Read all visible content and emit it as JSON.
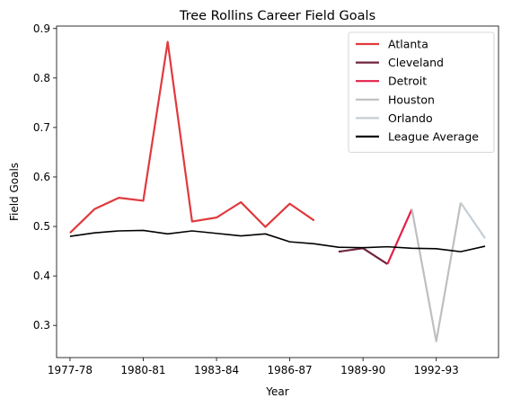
{
  "chart_data": {
    "type": "line",
    "title": "Tree Rollins Career Field Goals",
    "xlabel": "Year",
    "ylabel": "Field Goals",
    "x_ticks": [
      "1977-78",
      "1980-81",
      "1983-84",
      "1986-87",
      "1989-90",
      "1992-93"
    ],
    "y_ticks": [
      "0.3",
      "0.4",
      "0.5",
      "0.6",
      "0.7",
      "0.8",
      "0.9"
    ],
    "ylim": [
      0.235,
      0.905
    ],
    "grid": false,
    "legend_position": "top-right",
    "seasons": [
      "1977-78",
      "1978-79",
      "1979-80",
      "1980-81",
      "1981-82",
      "1982-83",
      "1983-84",
      "1984-85",
      "1985-86",
      "1986-87",
      "1987-88",
      "1988-89",
      "1989-90",
      "1990-91",
      "1991-92",
      "1992-93",
      "1993-94",
      "1994-95"
    ],
    "series": [
      {
        "name": "Atlanta",
        "color": "#e03a3e",
        "x": [
          "1977-78",
          "1978-79",
          "1979-80",
          "1980-81",
          "1981-82",
          "1982-83",
          "1983-84",
          "1984-85",
          "1985-86",
          "1986-87",
          "1987-88"
        ],
        "values": [
          0.487,
          0.535,
          0.558,
          0.552,
          0.873,
          0.51,
          0.518,
          0.549,
          0.499,
          0.546,
          0.512
        ]
      },
      {
        "name": "Cleveland",
        "color": "#6f263d",
        "x": [
          "1988-89",
          "1989-90",
          "1990-91"
        ],
        "values": [
          0.449,
          0.456,
          0.424
        ]
      },
      {
        "name": "Detroit",
        "color": "#e41e4a",
        "x": [
          "1990-91",
          "1991-92"
        ],
        "values": [
          0.424,
          0.535
        ]
      },
      {
        "name": "Houston",
        "color": "#bfbfbf",
        "x": [
          "1991-92",
          "1992-93",
          "1993-94"
        ],
        "values": [
          0.535,
          0.268,
          0.548
        ]
      },
      {
        "name": "Orlando",
        "color": "#c4ced4",
        "x": [
          "1993-94",
          "1994-95"
        ],
        "values": [
          0.548,
          0.476
        ]
      },
      {
        "name": "League Average",
        "color": "#000000",
        "x": [
          "1977-78",
          "1978-79",
          "1979-80",
          "1980-81",
          "1981-82",
          "1982-83",
          "1983-84",
          "1984-85",
          "1985-86",
          "1986-87",
          "1987-88",
          "1988-89",
          "1989-90",
          "1990-91",
          "1991-92",
          "1992-93",
          "1993-94",
          "1994-95"
        ],
        "values": [
          0.48,
          0.487,
          0.491,
          0.492,
          0.485,
          0.491,
          0.486,
          0.481,
          0.485,
          0.469,
          0.465,
          0.458,
          0.457,
          0.459,
          0.456,
          0.455,
          0.449,
          0.46
        ]
      }
    ]
  }
}
